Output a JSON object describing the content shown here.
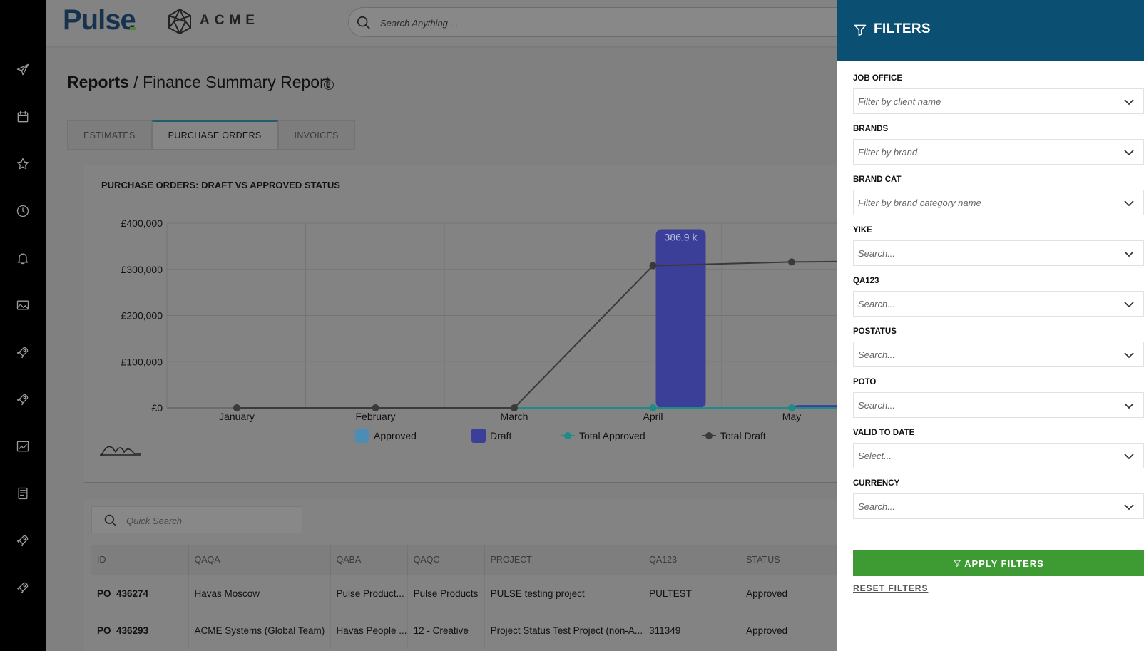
{
  "app": {
    "logo": "Pulse",
    "brand": "ACME"
  },
  "search": {
    "placeholder": "Search Anything ..."
  },
  "sidebar": {
    "icons": [
      "paper-plane-icon",
      "calendar-icon",
      "star-icon",
      "clock-icon",
      "bell-icon",
      "image-icon",
      "rocket-icon",
      "rocket-icon",
      "chart-icon",
      "book-icon",
      "rocket-icon",
      "rocket-icon"
    ]
  },
  "breadcrumb": {
    "root": "Reports",
    "separator": " / ",
    "current": "Finance Summary Report"
  },
  "tabs": [
    "ESTIMATES",
    "PURCHASE ORDERS",
    "INVOICES"
  ],
  "active_tab": "PURCHASE ORDERS",
  "chart_data": {
    "type": "bar",
    "title": "PURCHASE ORDERS: DRAFT VS APPROVED STATUS",
    "categories": [
      "January",
      "February",
      "March",
      "April",
      "May"
    ],
    "series": [
      {
        "name": "Approved",
        "kind": "bar",
        "color": "#4b8db5",
        "values": [
          0,
          0,
          0,
          0,
          0
        ]
      },
      {
        "name": "Draft",
        "kind": "bar",
        "color": "#3b3f98",
        "values": [
          0,
          0,
          0,
          386900,
          6000
        ]
      },
      {
        "name": "Total Approved",
        "kind": "line",
        "color": "#1e8a8a",
        "values": [
          0,
          0,
          0,
          0,
          0
        ]
      },
      {
        "name": "Total Draft",
        "kind": "line",
        "color": "#3a3a3a",
        "values": [
          0,
          0,
          0,
          308000,
          316000
        ]
      }
    ],
    "bar_label": "386.9 k",
    "yticks": [
      "£400,000",
      "£300,000",
      "£200,000",
      "£100,000",
      "£0"
    ],
    "ylim": [
      0,
      400000
    ],
    "legend": "bottom"
  },
  "table": {
    "search_placeholder": "Quick Search",
    "columns": [
      "ID",
      "QAQA",
      "QABA",
      "QAQC",
      "PROJECT",
      "QA123",
      "STATUS"
    ],
    "rows": [
      [
        "PO_436274",
        "Havas Moscow",
        "Pulse Product...",
        "Pulse Products",
        "PULSE testing project",
        "PULTEST",
        "Approved"
      ],
      [
        "PO_436293",
        "ACME Systems (Global Team)",
        "Havas People ...",
        "12 - Creative",
        "Project Status Test Project (non-A...",
        "311349",
        "Approved"
      ]
    ]
  },
  "filters": {
    "title": "FILTERS",
    "fields": [
      {
        "label": "JOB OFFICE",
        "placeholder": "Filter by client name"
      },
      {
        "label": "BRANDS",
        "placeholder": "Filter by brand"
      },
      {
        "label": "BRAND CAT",
        "placeholder": "Filter by brand category name"
      },
      {
        "label": "YIKE",
        "placeholder": "Search..."
      },
      {
        "label": "QA123",
        "placeholder": "Search..."
      },
      {
        "label": "POSTATUS",
        "placeholder": "Search..."
      },
      {
        "label": "POTO",
        "placeholder": "Search..."
      },
      {
        "label": "VALID TO DATE",
        "placeholder": "Select..."
      },
      {
        "label": "CURRENCY",
        "placeholder": "Search..."
      }
    ],
    "apply_label": "APPLY FILTERS",
    "reset_label": "RESET FILTERS"
  }
}
